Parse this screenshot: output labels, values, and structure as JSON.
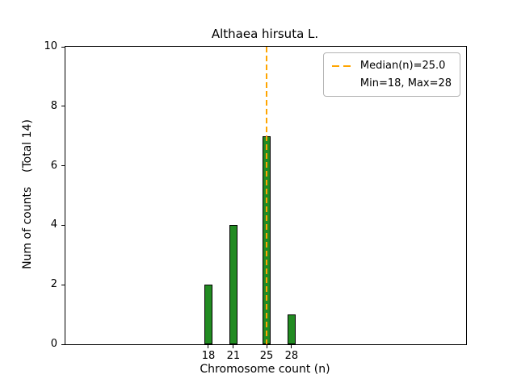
{
  "figure": {
    "background": "#ffffff"
  },
  "chart_data": {
    "type": "bar",
    "title": "Althaea hirsuta L.",
    "xlabel": "Chromosome count (n)",
    "ylabel": "Num of counts    (Total 14)",
    "categories": [
      18,
      21,
      25,
      28
    ],
    "values": [
      2,
      4,
      7,
      1
    ],
    "bar_color": "#228B22",
    "bar_edge_color": "#000000",
    "bar_width_units": 1.0,
    "median_line": {
      "x": 25.0,
      "color": "#ffa500",
      "style": "dashed"
    },
    "legend": {
      "position": "upper right",
      "entries": [
        {
          "label": "Median(n)=25.0",
          "marker": "dashed-line"
        },
        {
          "label": "Min=18, Max=28",
          "marker": "none"
        }
      ]
    },
    "xlim": [
      0.8,
      49.0
    ],
    "ylim": [
      0,
      10
    ],
    "xticks": [
      18,
      21,
      25,
      28
    ],
    "yticks": [
      0,
      2,
      4,
      6,
      8,
      10
    ],
    "grid": false
  }
}
